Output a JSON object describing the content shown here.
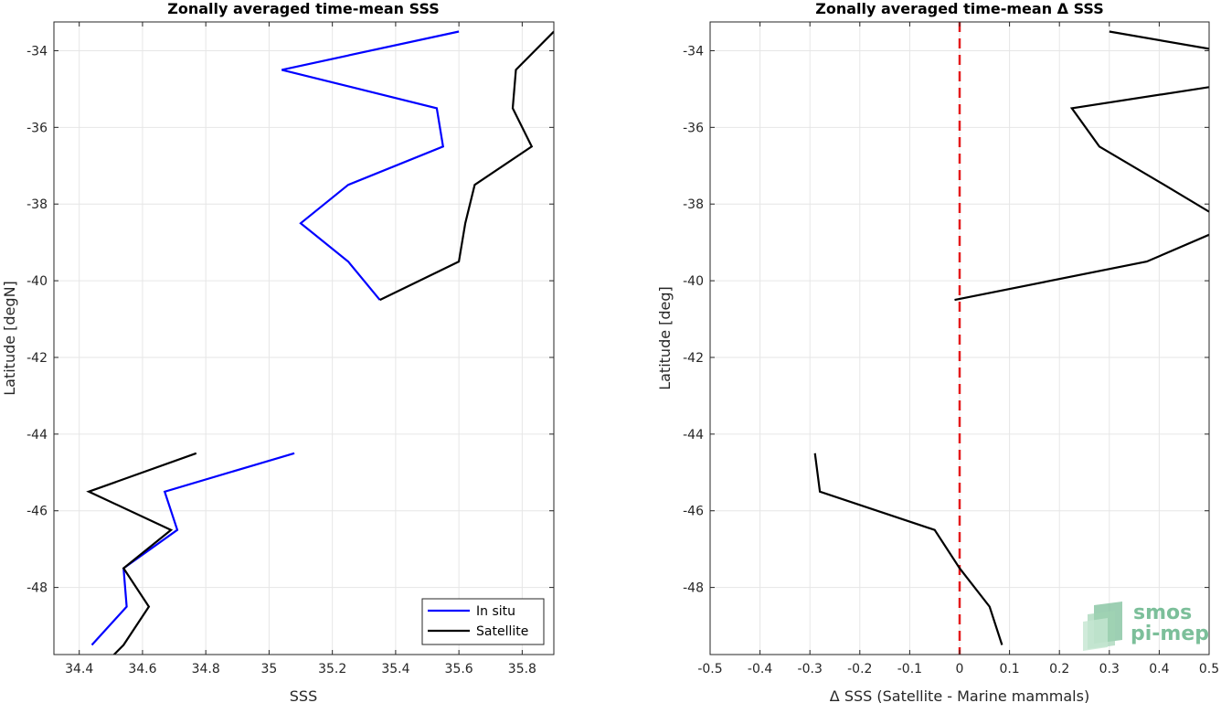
{
  "chart_data": [
    {
      "type": "line",
      "title": "Zonally averaged time-mean SSS",
      "xlabel": "SSS",
      "ylabel": "Latitude [degN]",
      "xlim": [
        34.32,
        35.9
      ],
      "ylim": [
        -49.75,
        -33.25
      ],
      "xticks": [
        34.4,
        34.6,
        34.8,
        35,
        35.2,
        35.4,
        35.6,
        35.8
      ],
      "xtick_labels": [
        "34.4",
        "34.6",
        "34.8",
        "35",
        "35.2",
        "35.4",
        "35.6",
        "35.8"
      ],
      "yticks": [
        -34,
        -36,
        -38,
        -40,
        -42,
        -44,
        -46,
        -48
      ],
      "ytick_labels": [
        "-34",
        "-36",
        "-38",
        "-40",
        "-42",
        "-44",
        "-46",
        "-48"
      ],
      "grid": true,
      "legend_position": "bottom-right",
      "series": [
        {
          "name": "In situ",
          "color": "#0000ff",
          "segments": [
            [
              [
                35.6,
                -33.5
              ],
              [
                35.04,
                -34.5
              ],
              [
                35.53,
                -35.5
              ],
              [
                35.55,
                -36.5
              ],
              [
                35.25,
                -37.5
              ],
              [
                35.1,
                -38.5
              ],
              [
                35.25,
                -39.5
              ],
              [
                35.35,
                -40.5
              ]
            ],
            [
              [
                35.08,
                -44.5
              ],
              [
                34.67,
                -45.5
              ],
              [
                34.71,
                -46.5
              ],
              [
                34.54,
                -47.5
              ],
              [
                34.55,
                -48.5
              ],
              [
                34.44,
                -49.5
              ]
            ]
          ]
        },
        {
          "name": "Satellite",
          "color": "#000000",
          "segments": [
            [
              [
                35.9,
                -33.5
              ],
              [
                35.78,
                -34.5
              ],
              [
                35.77,
                -35.5
              ],
              [
                35.83,
                -36.5
              ],
              [
                35.65,
                -37.5
              ],
              [
                35.62,
                -38.5
              ],
              [
                35.6,
                -39.5
              ],
              [
                35.35,
                -40.5
              ]
            ],
            [
              [
                34.77,
                -44.5
              ],
              [
                34.43,
                -45.5
              ],
              [
                34.69,
                -46.5
              ],
              [
                34.54,
                -47.5
              ],
              [
                34.62,
                -48.5
              ],
              [
                34.54,
                -49.5
              ],
              [
                34.48,
                -50.0
              ]
            ]
          ]
        }
      ]
    },
    {
      "type": "line",
      "title": "Zonally averaged time-mean Δ SSS",
      "xlabel": "Δ SSS (Satellite - Marine mammals)",
      "ylabel": "Latitude [deg]",
      "xlim": [
        -0.5,
        0.5
      ],
      "ylim": [
        -49.75,
        -33.25
      ],
      "xticks": [
        -0.5,
        -0.4,
        -0.3,
        -0.2,
        -0.1,
        0,
        0.1,
        0.2,
        0.3,
        0.4,
        0.5
      ],
      "xtick_labels": [
        "-0.5",
        "-0.4",
        "-0.3",
        "-0.2",
        "-0.1",
        "0",
        "0.1",
        "0.2",
        "0.3",
        "0.4",
        "0.5"
      ],
      "yticks": [
        -34,
        -36,
        -38,
        -40,
        -42,
        -44,
        -46,
        -48
      ],
      "ytick_labels": [
        "-34",
        "-36",
        "-38",
        "-40",
        "-42",
        "-44",
        "-46",
        "-48"
      ],
      "grid": true,
      "reference_line": {
        "x": 0,
        "color": "#e41a1c",
        "style": "dashed"
      },
      "series": [
        {
          "color": "#000000",
          "segments": [
            [
              [
                0.3,
                -33.5
              ],
              [
                0.5,
                -33.95
              ]
            ],
            [
              [
                0.5,
                -34.95
              ],
              [
                0.225,
                -35.5
              ],
              [
                0.28,
                -36.5
              ],
              [
                0.41,
                -37.5
              ],
              [
                0.5,
                -38.2
              ]
            ],
            [
              [
                0.5,
                -38.8
              ],
              [
                0.375,
                -39.5
              ],
              [
                -0.01,
                -40.5
              ]
            ],
            [
              [
                -0.29,
                -44.5
              ],
              [
                -0.28,
                -45.5
              ],
              [
                -0.05,
                -46.5
              ],
              [
                0,
                -47.5
              ],
              [
                0.06,
                -48.5
              ],
              [
                0.085,
                -49.5
              ]
            ]
          ]
        }
      ]
    }
  ],
  "logo": {
    "line1": "smos",
    "line2": "pi-mep",
    "color": "#7cbf9a"
  }
}
